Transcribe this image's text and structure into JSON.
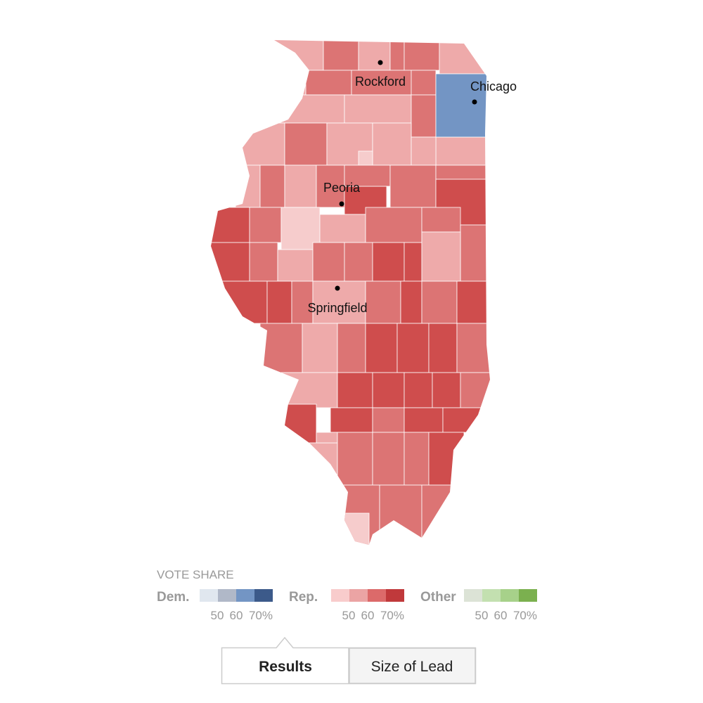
{
  "map": {
    "cities": [
      {
        "name": "Rockford"
      },
      {
        "name": "Chicago"
      },
      {
        "name": "Peoria"
      },
      {
        "name": "Springfield"
      }
    ]
  },
  "legend": {
    "title": "VOTE SHARE",
    "groups": [
      {
        "name": "Dem.",
        "scale": [
          "50",
          "60",
          "70%"
        ]
      },
      {
        "name": "Rep.",
        "scale": [
          "50",
          "60",
          "70%"
        ]
      },
      {
        "name": "Other",
        "scale": [
          "50",
          "60",
          "70%"
        ]
      }
    ]
  },
  "tabs": [
    "Results",
    "Size of Lead"
  ]
}
